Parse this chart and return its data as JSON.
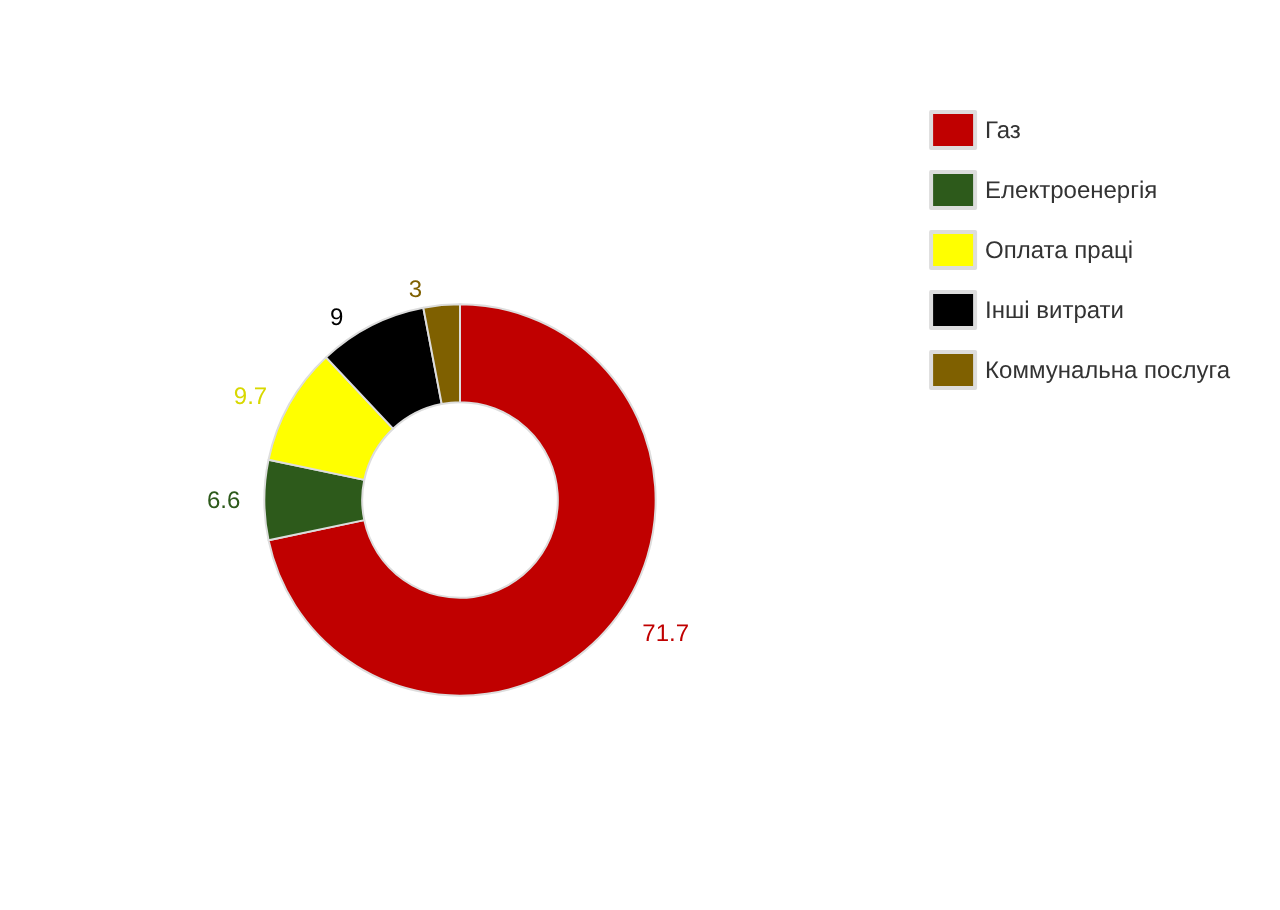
{
  "chart_data": {
    "type": "donut",
    "categories": [
      "Газ",
      "Електроенергія",
      "Оплата праці",
      "Інші витрати",
      "Коммунальна послуга"
    ],
    "values": [
      71.7,
      6.6,
      9.7,
      9,
      3
    ],
    "colors": [
      "#c00000",
      "#2d5a1b",
      "#ffff00",
      "#000000",
      "#7f6000"
    ],
    "data_labels": true,
    "legend": "top right"
  }
}
